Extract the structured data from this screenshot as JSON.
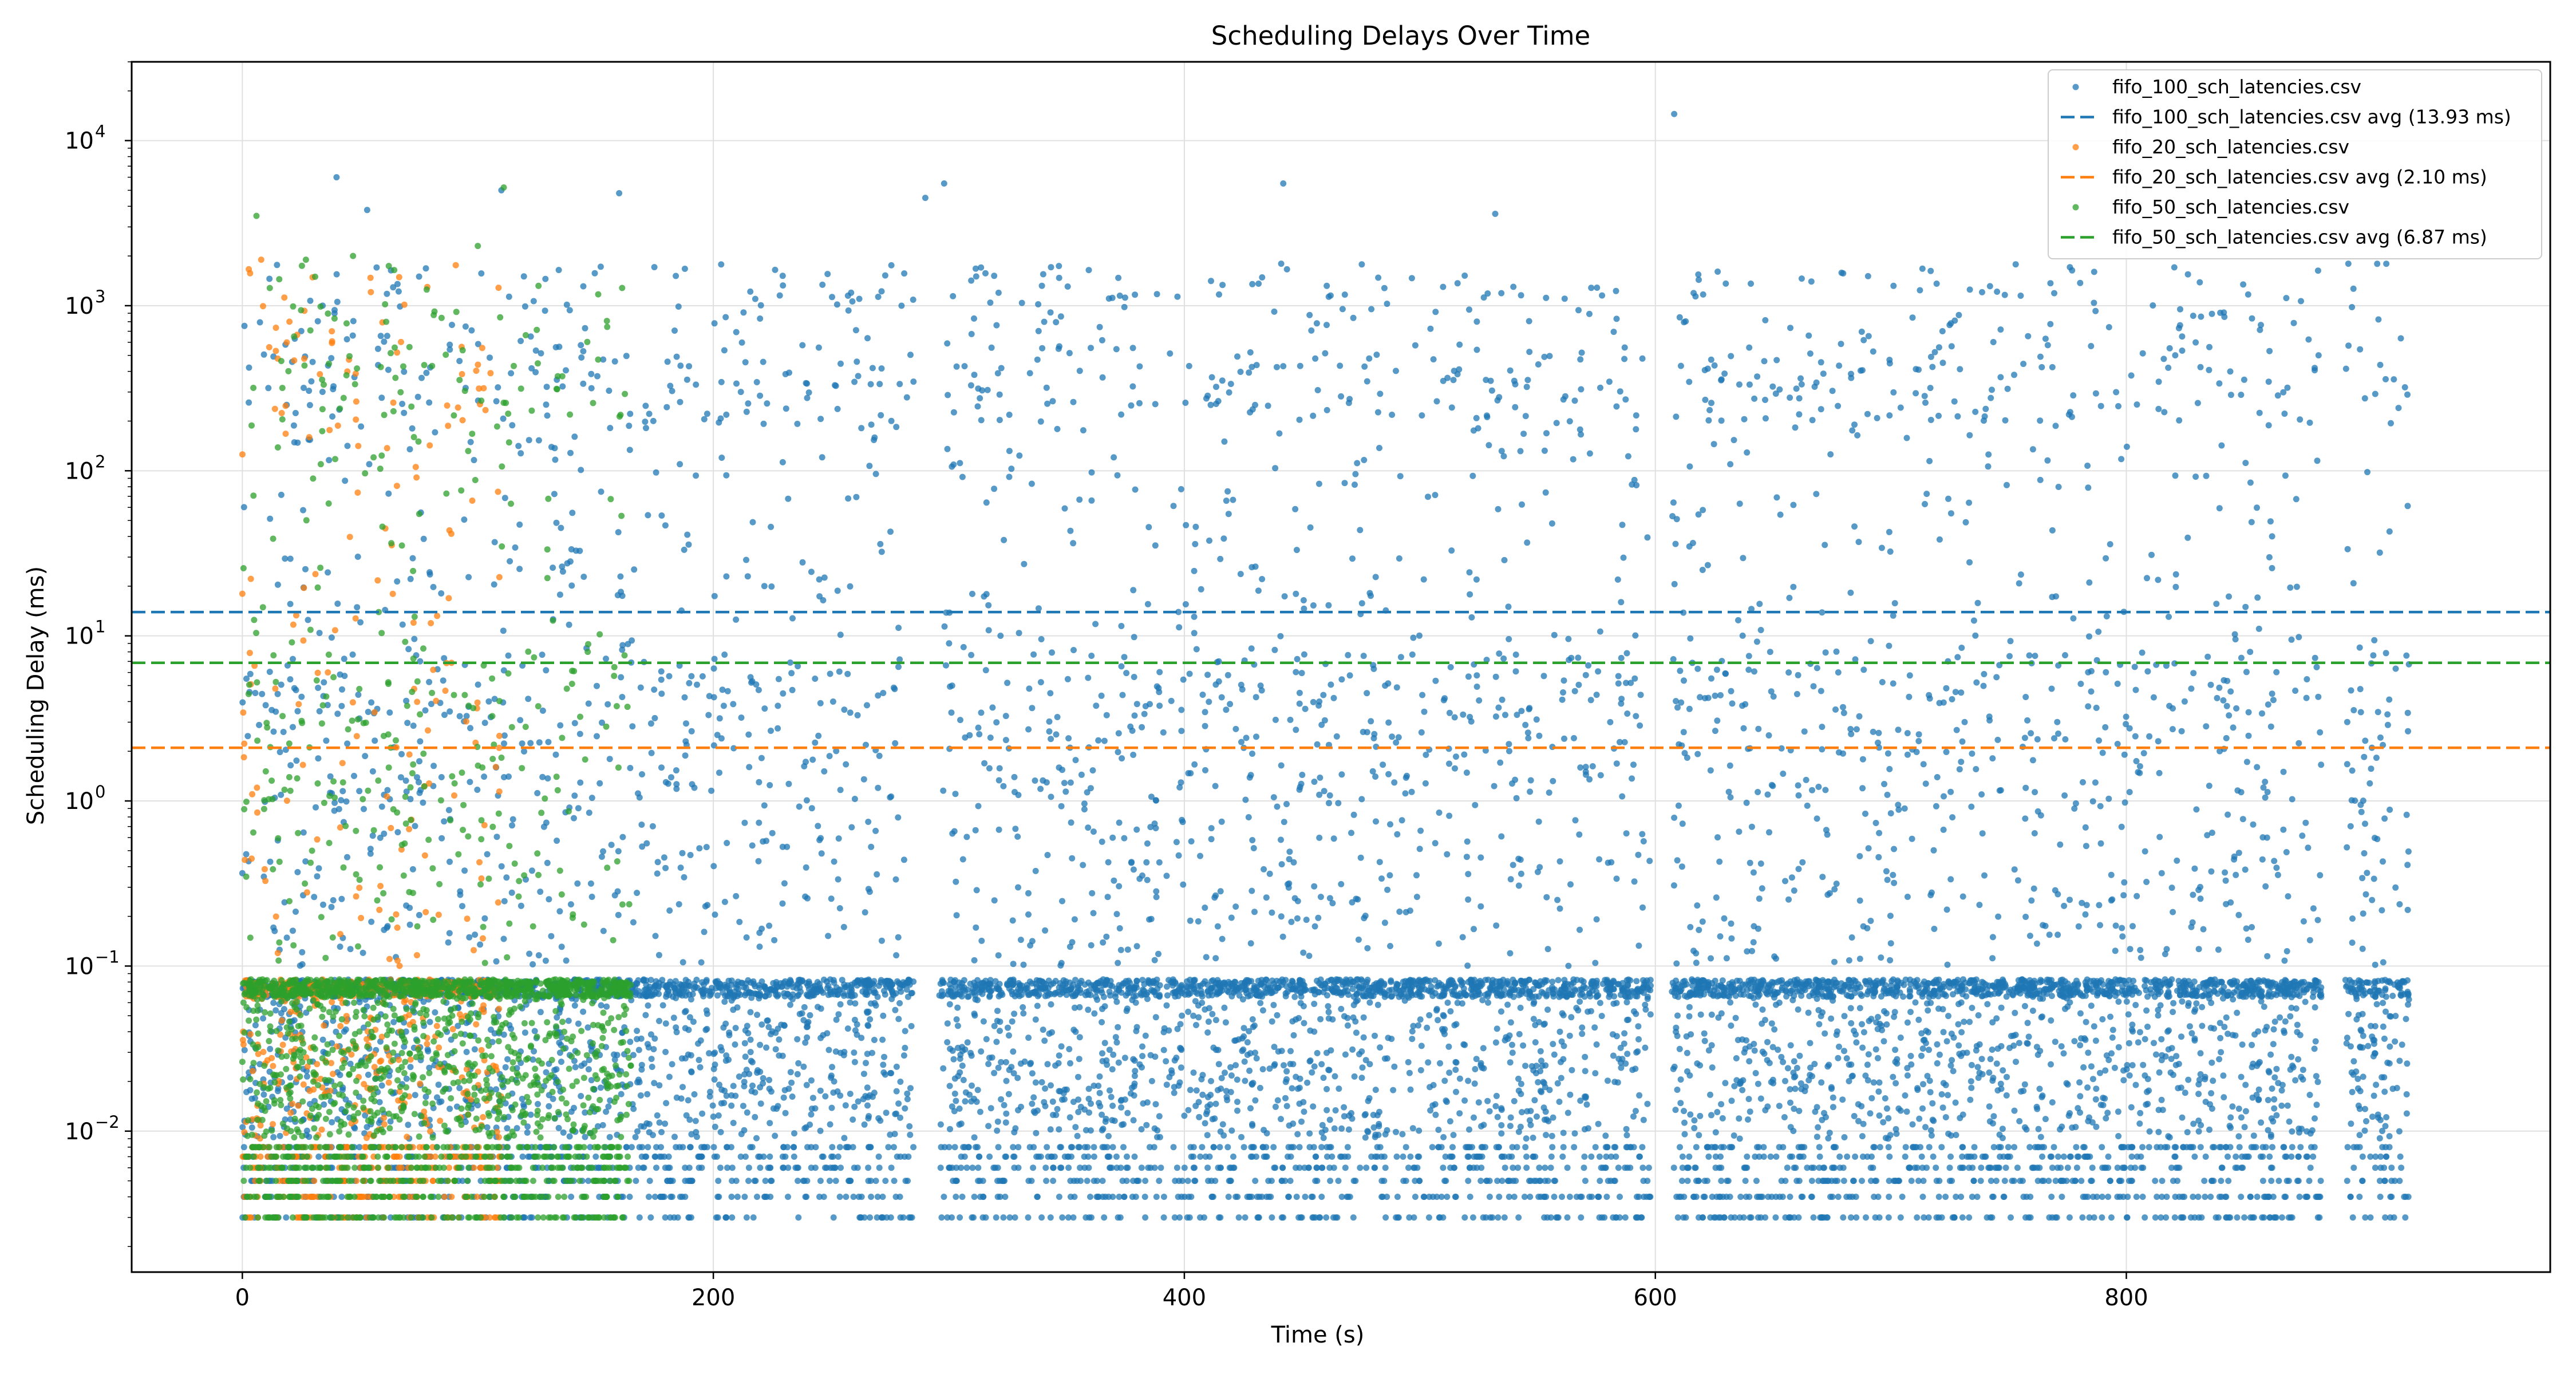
{
  "chart_data": {
    "type": "scatter",
    "title": "Scheduling Delays Over Time",
    "xlabel": "Time (s)",
    "ylabel": "Scheduling Delay (ms)",
    "xlim": [
      -47,
      980
    ],
    "ylim": [
      0.0014,
      30000
    ],
    "yscale": "log",
    "grid": true,
    "legend_position": "top-right",
    "x_ticks": [
      0,
      200,
      400,
      600,
      800
    ],
    "x_tick_labels": [
      "0",
      "200",
      "400",
      "600",
      "800"
    ],
    "y_ticks": [
      0.01,
      0.1,
      1,
      10,
      100,
      1000,
      10000
    ],
    "y_tick_labels": [
      "10",
      "10",
      "10",
      "10",
      "10",
      "10",
      "10"
    ],
    "y_tick_exponents": [
      "−2",
      "−1",
      "0",
      "1",
      "2",
      "3",
      "4"
    ],
    "series": [
      {
        "name": "fifo_100_sch_latencies.csv",
        "avg_label": "fifo_100_sch_latencies.csv avg (13.93 ms)",
        "avg": 13.93,
        "color": "#1f77b4",
        "x_range": [
          0,
          920
        ],
        "gaps": [
          [
            598,
            607
          ],
          [
            285,
            296
          ],
          [
            883,
            893
          ]
        ],
        "outliers": [
          [
            40,
            6000
          ],
          [
            298,
            5500
          ],
          [
            442,
            5500
          ],
          [
            608,
            14500
          ],
          [
            110,
            5000
          ],
          [
            160,
            4800
          ],
          [
            53,
            3800
          ],
          [
            532,
            3600
          ],
          [
            290,
            4500
          ]
        ]
      },
      {
        "name": "fifo_20_sch_latencies.csv",
        "avg_label": "fifo_20_sch_latencies.csv avg (2.10 ms)",
        "avg": 2.1,
        "color": "#ff7f0e",
        "x_range": [
          0,
          110
        ],
        "outliers": [
          [
            8,
            1900
          ],
          [
            20,
            800
          ],
          [
            38,
            700
          ],
          [
            0,
            18
          ]
        ]
      },
      {
        "name": "fifo_50_sch_latencies.csv",
        "avg_label": "fifo_50_sch_latencies.csv avg (6.87 ms)",
        "avg": 6.87,
        "color": "#2ca02c",
        "x_range": [
          0,
          165
        ],
        "outliers": [
          [
            6,
            3500
          ],
          [
            100,
            2300
          ],
          [
            111,
            5200
          ],
          [
            47,
            2000
          ],
          [
            27,
            1900
          ]
        ]
      }
    ]
  }
}
